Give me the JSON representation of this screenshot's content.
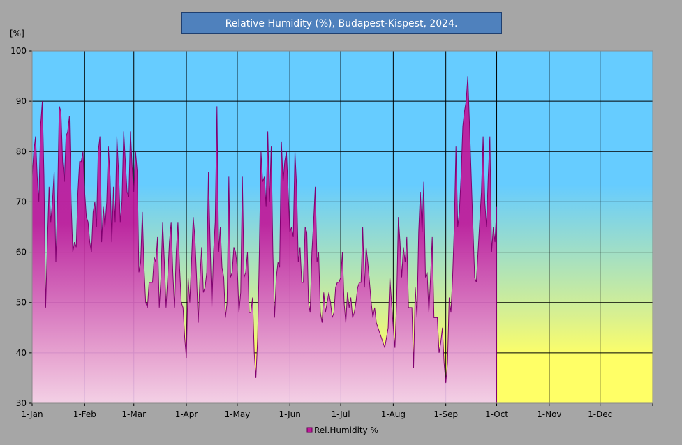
{
  "chart_data": {
    "type": "area",
    "title": "Relative Humidity (%), Budapest-Kispest, 2024.",
    "ylabel": "[%]",
    "xlabel": "",
    "ylim": [
      30,
      100
    ],
    "yticks": [
      30,
      40,
      50,
      60,
      70,
      80,
      90,
      100
    ],
    "xtick_labels": [
      "1-Jan",
      "1-Feb",
      "1-Mar",
      "1-Apr",
      "1-May",
      "1-Jun",
      "1-Jul",
      "1-Aug",
      "1-Sep",
      "1-Oct",
      "1-Nov",
      "1-Dec"
    ],
    "xtick_days": [
      0,
      31,
      60,
      91,
      121,
      152,
      182,
      213,
      244,
      274,
      305,
      335
    ],
    "x_range_days": [
      0,
      366
    ],
    "grid": true,
    "legend": {
      "position": "bottom",
      "entries": [
        "Rel.Humidity %"
      ]
    },
    "series": [
      {
        "name": "Rel.Humidity %",
        "color": "#C0189A",
        "start": "1-Jan",
        "values": [
          75,
          80,
          83,
          75,
          70,
          85,
          90,
          75,
          49,
          62,
          73,
          66,
          70,
          76,
          58,
          70,
          89,
          88,
          78,
          74,
          83,
          84,
          87,
          70,
          60,
          62,
          61,
          72,
          78,
          78,
          80,
          72,
          67,
          66,
          62,
          60,
          68,
          70,
          65,
          80,
          83,
          62,
          69,
          65,
          70,
          81,
          75,
          62,
          73,
          66,
          83,
          76,
          66,
          70,
          84,
          78,
          72,
          71,
          84,
          77,
          72,
          80,
          76,
          56,
          58,
          68,
          57,
          50,
          49,
          54,
          54,
          54,
          59,
          58,
          63,
          49,
          55,
          66,
          58,
          49,
          55,
          62,
          66,
          56,
          49,
          60,
          66,
          57,
          50,
          49,
          43,
          39,
          55,
          50,
          58,
          67,
          63,
          55,
          46,
          55,
          61,
          52,
          53,
          56,
          76,
          62,
          49,
          60,
          66,
          89,
          60,
          65,
          57,
          55,
          47,
          50,
          75,
          55,
          56,
          61,
          60,
          57,
          48,
          52,
          75,
          55,
          56,
          60,
          48,
          48,
          51,
          40,
          35,
          43,
          60,
          80,
          74,
          75,
          69,
          84,
          70,
          81,
          60,
          47,
          55,
          58,
          57,
          82,
          74,
          78,
          80,
          72,
          64,
          65,
          63,
          80,
          73,
          58,
          61,
          54,
          54,
          65,
          64,
          50,
          48,
          60,
          66,
          73,
          58,
          60,
          48,
          46,
          52,
          48,
          50,
          52,
          50,
          47,
          48,
          53,
          54,
          54,
          55,
          60,
          50,
          46,
          52,
          49,
          51,
          47,
          48,
          50,
          53,
          54,
          54,
          65,
          53,
          61,
          58,
          54,
          50,
          47,
          49,
          46,
          45,
          44,
          43,
          42,
          41,
          43,
          45,
          55,
          50,
          45,
          41,
          50,
          67,
          62,
          55,
          61,
          58,
          63,
          49,
          49,
          49,
          37,
          53,
          47,
          64,
          72,
          64,
          74,
          55,
          56,
          48,
          55,
          63,
          47,
          47,
          47,
          40,
          42,
          45,
          38,
          34,
          38,
          51,
          48,
          55,
          65,
          81,
          65,
          68,
          75,
          85,
          88,
          90,
          95,
          85,
          75,
          65,
          55,
          54,
          60,
          66,
          72,
          83,
          70,
          65,
          75,
          83,
          60,
          65,
          62,
          69
        ]
      }
    ]
  },
  "colors": {
    "background": "#A6A6A6",
    "plot_top": "#66CCFF",
    "plot_bottom": "#FFFF66",
    "area_top": "#C0189A",
    "area_bottom": "#F2CCF0",
    "title_box": "#4F81BD"
  }
}
